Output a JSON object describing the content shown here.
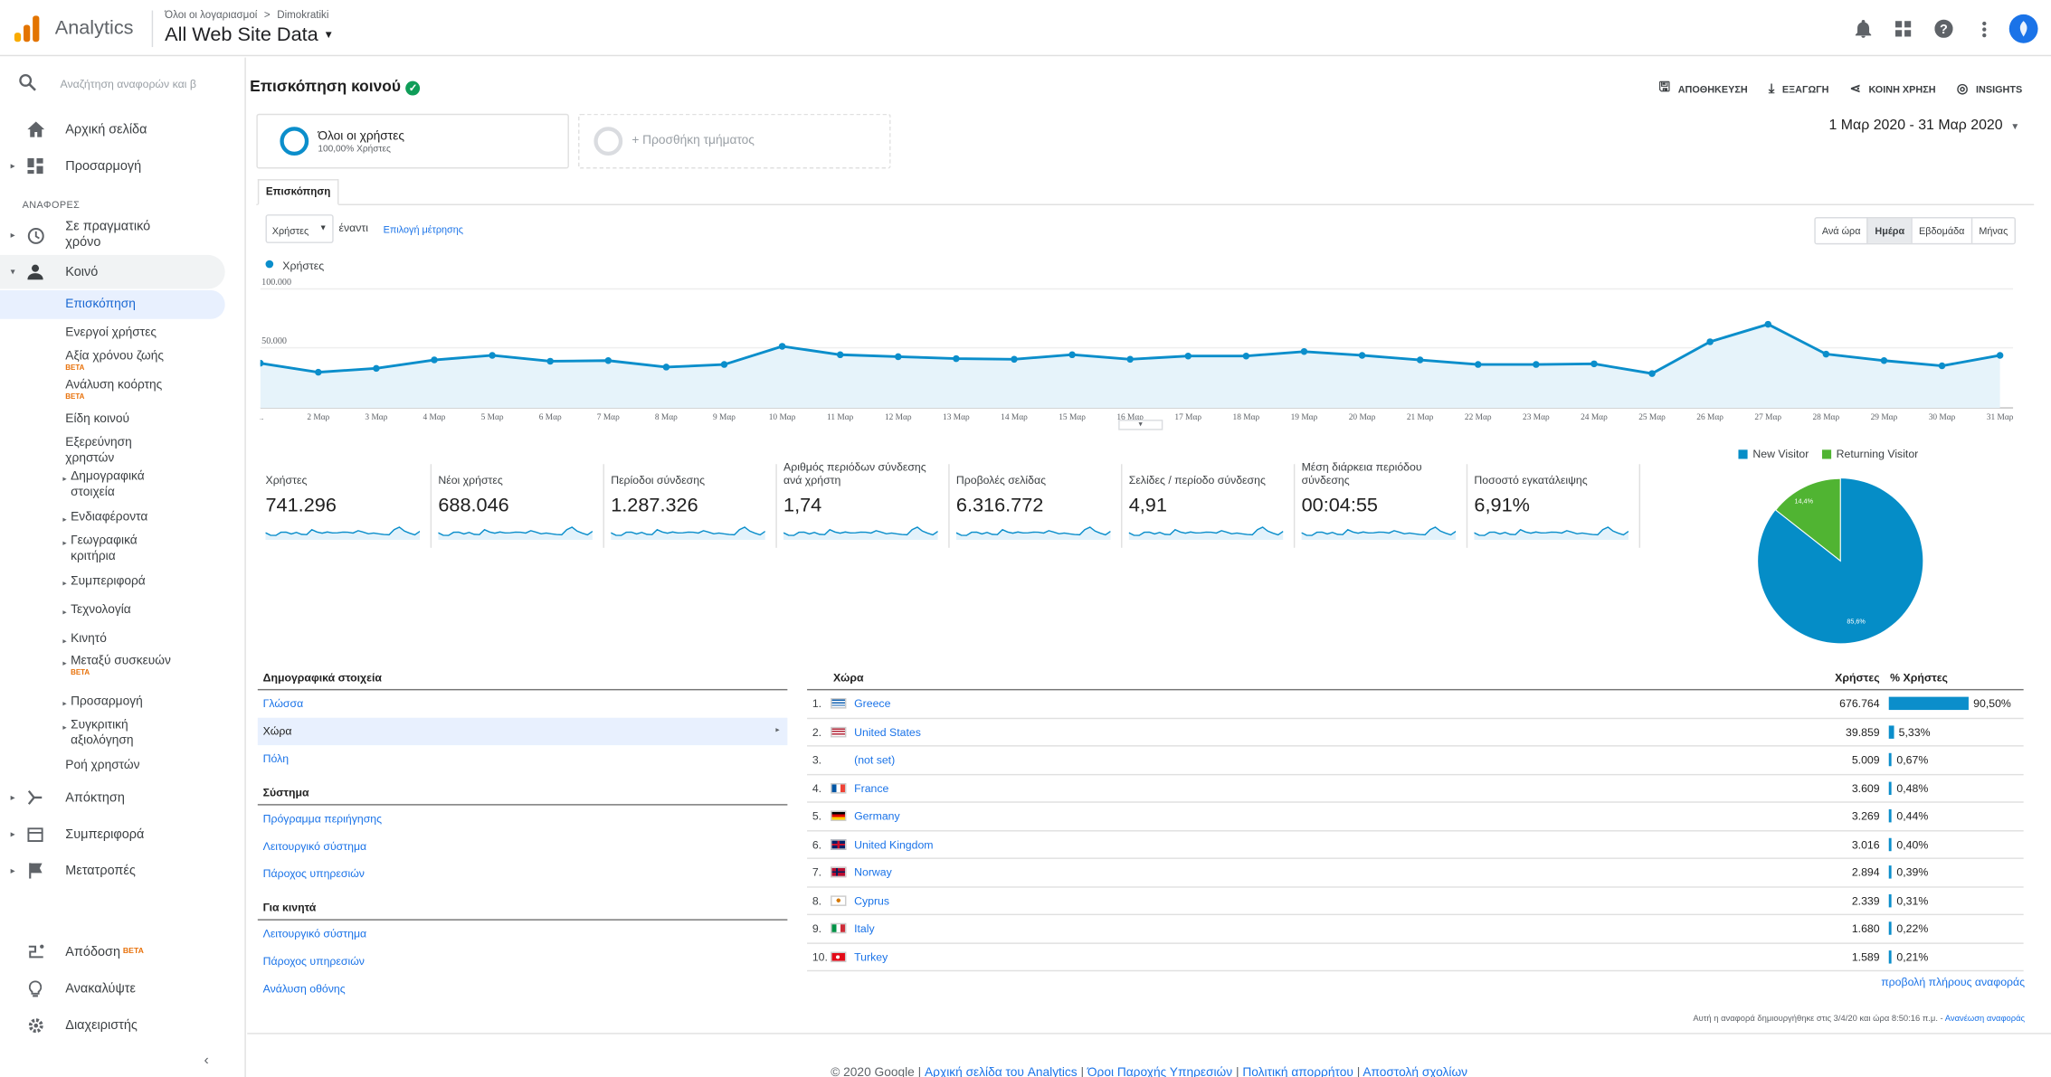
{
  "topbar": {
    "app_name": "Analytics",
    "breadcrumb_accounts": "Όλοι οι λογαριασμοί",
    "breadcrumb_sep": ">",
    "breadcrumb_account": "Dimokratiki",
    "property": "All Web Site Data"
  },
  "sidebar": {
    "search_placeholder": "Αναζήτηση αναφορών και β",
    "home": "Αρχική σελίδα",
    "customization": "Προσαρμογή",
    "reports_header": "ΑΝΑΦΟΡΕΣ",
    "realtime": "Σε πραγματικό χρόνο",
    "audience": "Κοινό",
    "audience_items": {
      "overview": "Επισκόπηση",
      "active_users": "Ενεργοί χρήστες",
      "lifetime_value": "Αξία χρόνου ζωής",
      "cohort": "Ανάλυση κοόρτης",
      "audiences": "Είδη κοινού",
      "user_explorer": "Εξερεύνηση χρηστών",
      "demographics": "Δημογραφικά στοιχεία",
      "interests": "Ενδιαφέροντα",
      "geo": "Γεωγραφικά κριτήρια",
      "behavior": "Συμπεριφορά",
      "technology": "Τεχνολογία",
      "mobile": "Κινητό",
      "cross_device": "Μεταξύ συσκευών",
      "custom": "Προσαρμογή",
      "benchmarking": "Συγκριτική αξιολόγηση",
      "users_flow": "Ροή χρηστών"
    },
    "beta": "BETA",
    "acquisition": "Απόκτηση",
    "behavior": "Συμπεριφορά",
    "conversions": "Μετατροπές",
    "attribution": "Απόδοση",
    "discover": "Ανακαλύψτε",
    "admin": "Διαχειριστής"
  },
  "header": {
    "title": "Επισκόπηση κοινού",
    "save": "ΑΠΟΘΗΚΕΥΣΗ",
    "export": "ΕΞΑΓΩΓΗ",
    "share": "ΚΟΙΝΗ ΧΡΗΣΗ",
    "insights": "INSIGHTS"
  },
  "segments": {
    "all_users": "Όλοι οι χρήστες",
    "all_users_sub": "100,00% Χρήστες",
    "add": "+ Προσθήκη τμήματος"
  },
  "date_range": "1 Μαρ 2020 - 31 Μαρ 2020",
  "tab_overview": "Επισκόπηση",
  "metric_select": "Χρήστες",
  "versus": "έναντι",
  "pick_metric": "Επιλογή μέτρησης",
  "granularity": {
    "hour": "Ανά ώρα",
    "day": "Ημέρα",
    "week": "Εβδομάδα",
    "month": "Μήνας"
  },
  "legend_users": "Χρήστες",
  "chart_data": {
    "type": "line",
    "series": [
      {
        "name": "Χρήστες",
        "values": [
          34500,
          27500,
          30500,
          37000,
          40500,
          36000,
          36500,
          31500,
          33500,
          47500,
          41000,
          39500,
          38000,
          37500,
          41000,
          37500,
          40000,
          40000,
          43500,
          40500,
          37000,
          33500,
          33500,
          34000,
          26500,
          51000,
          64500,
          41500,
          36500,
          32500,
          40500
        ]
      }
    ],
    "x_labels": [
      "...",
      "2 Μαρ",
      "3 Μαρ",
      "4 Μαρ",
      "5 Μαρ",
      "6 Μαρ",
      "7 Μαρ",
      "8 Μαρ",
      "9 Μαρ",
      "10 Μαρ",
      "11 Μαρ",
      "12 Μαρ",
      "13 Μαρ",
      "14 Μαρ",
      "15 Μαρ",
      "16 Μαρ",
      "17 Μαρ",
      "18 Μαρ",
      "19 Μαρ",
      "20 Μαρ",
      "21 Μαρ",
      "22 Μαρ",
      "23 Μαρ",
      "24 Μαρ",
      "25 Μαρ",
      "26 Μαρ",
      "27 Μαρ",
      "28 Μαρ",
      "29 Μαρ",
      "30 Μαρ",
      "31 Μαρ"
    ],
    "y_ticks": [
      "100.000",
      "50.000"
    ],
    "ylim": [
      0,
      100000
    ]
  },
  "metrics": [
    {
      "label": "Χρήστες",
      "value": "741.296"
    },
    {
      "label": "Νέοι χρήστες",
      "value": "688.046"
    },
    {
      "label": "Περίοδοι σύνδεσης",
      "value": "1.287.326"
    },
    {
      "label": "Αριθμός περιόδων σύνδεσης ανά χρήστη",
      "value": "1,74"
    },
    {
      "label": "Προβολές σελίδας",
      "value": "6.316.772"
    },
    {
      "label": "Σελίδες / περίοδο σύνδεσης",
      "value": "4,91"
    },
    {
      "label": "Μέση διάρκεια περιόδου σύνδεσης",
      "value": "00:04:55"
    },
    {
      "label": "Ποσοστό εγκατάλειψης",
      "value": "6,91%"
    }
  ],
  "pie": {
    "new_label": "New Visitor",
    "returning_label": "Returning Visitor",
    "new_pct": "85,6%",
    "returning_pct": "14,4%",
    "new_value": 85.6,
    "returning_value": 14.4,
    "new_color": "#058dc7",
    "returning_color": "#50b432"
  },
  "demographics": {
    "title": "Δημογραφικά στοιχεία",
    "language": "Γλώσσα",
    "country": "Χώρα",
    "city": "Πόλη",
    "system_title": "Σύστημα",
    "browser": "Πρόγραμμα περιήγησης",
    "os": "Λειτουργικό σύστημα",
    "provider": "Πάροχος υπηρεσιών",
    "mobile_title": "Για κινητά",
    "m_os": "Λειτουργικό σύστημα",
    "m_provider": "Πάροχος υπηρεσιών",
    "m_screen": "Ανάλυση οθόνης"
  },
  "country_table": {
    "col_country": "Χώρα",
    "col_users": "Χρήστες",
    "col_pct": "% Χρήστες",
    "rows": [
      {
        "n": "1.",
        "name": "Greece",
        "users": "676.764",
        "pct": "90,50%",
        "pct_value": 90.5,
        "flag": "gr"
      },
      {
        "n": "2.",
        "name": "United States",
        "users": "39.859",
        "pct": "5,33%",
        "pct_value": 5.33,
        "flag": "us"
      },
      {
        "n": "3.",
        "name": "(not set)",
        "users": "5.009",
        "pct": "0,67%",
        "pct_value": 0.67,
        "flag": "none"
      },
      {
        "n": "4.",
        "name": "France",
        "users": "3.609",
        "pct": "0,48%",
        "pct_value": 0.48,
        "flag": "fr"
      },
      {
        "n": "5.",
        "name": "Germany",
        "users": "3.269",
        "pct": "0,44%",
        "pct_value": 0.44,
        "flag": "de"
      },
      {
        "n": "6.",
        "name": "United Kingdom",
        "users": "3.016",
        "pct": "0,40%",
        "pct_value": 0.4,
        "flag": "gb"
      },
      {
        "n": "7.",
        "name": "Norway",
        "users": "2.894",
        "pct": "0,39%",
        "pct_value": 0.39,
        "flag": "no"
      },
      {
        "n": "8.",
        "name": "Cyprus",
        "users": "2.339",
        "pct": "0,31%",
        "pct_value": 0.31,
        "flag": "cy"
      },
      {
        "n": "9.",
        "name": "Italy",
        "users": "1.680",
        "pct": "0,22%",
        "pct_value": 0.22,
        "flag": "it"
      },
      {
        "n": "10.",
        "name": "Turkey",
        "users": "1.589",
        "pct": "0,21%",
        "pct_value": 0.21,
        "flag": "tr"
      }
    ]
  },
  "full_report": "προβολή πλήρους αναφοράς",
  "generated_text": "Αυτή η αναφορά δημιουργήθηκε στις 3/4/20 και ώρα 8:50:16 π.μ. -",
  "refresh": "Ανανέωση αναφοράς",
  "footer": {
    "copyright": "© 2020 Google |",
    "home": "Αρχική σελίδα του Analytics",
    "sep": "|",
    "terms": "Όροι Παροχής Υπηρεσιών",
    "privacy": "Πολιτική απορρήτου",
    "feedback": "Αποστολή σχολίων"
  }
}
